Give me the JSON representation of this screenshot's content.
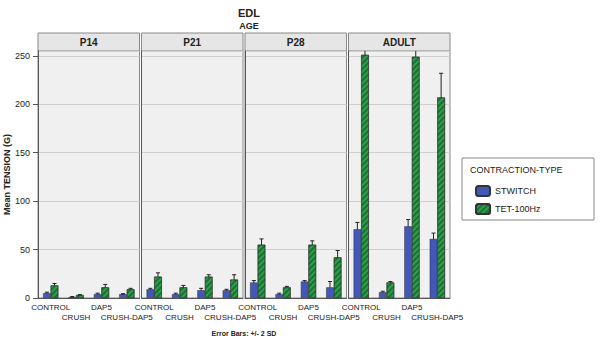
{
  "chart_data": {
    "type": "bar",
    "title": "EDL",
    "subtitle": "AGE",
    "y_label": "Mean TENSION (G)",
    "legend_title": "CONTRACTION-TYPE",
    "footnote": "Error Bars: +/- 2 SD",
    "legend": "right",
    "grid": true,
    "ylim": [
      0,
      255
    ],
    "yticks": [
      0,
      50,
      100,
      150,
      200,
      250
    ],
    "categories": [
      "CONTROL",
      "CRUSH",
      "DAP5",
      "CRUSH-DAP5"
    ],
    "panels": [
      {
        "title": "P14",
        "series": [
          {
            "name": "STWITCH",
            "color": "#4357b8",
            "values": [
              5,
              1,
              4,
              4
            ],
            "errors": [
              1,
              0.5,
              1,
              0.5
            ]
          },
          {
            "name": "TET-100Hz",
            "color": "#2e9e4a",
            "values": [
              13,
              3,
              11,
              9
            ],
            "errors": [
              2,
              0.5,
              3,
              1
            ]
          }
        ]
      },
      {
        "title": "P21",
        "series": [
          {
            "name": "STWITCH",
            "color": "#4357b8",
            "values": [
              9,
              4,
              8,
              8
            ],
            "errors": [
              1,
              1,
              2,
              1
            ]
          },
          {
            "name": "TET-100Hz",
            "color": "#2e9e4a",
            "values": [
              22,
              11,
              22,
              19
            ],
            "errors": [
              4,
              2,
              2,
              5
            ]
          }
        ]
      },
      {
        "title": "P28",
        "series": [
          {
            "name": "STWITCH",
            "color": "#4357b8",
            "values": [
              16,
              4,
              17,
              11
            ],
            "errors": [
              2,
              1,
              1,
              6
            ]
          },
          {
            "name": "TET-100Hz",
            "color": "#2e9e4a",
            "values": [
              55,
              11,
              55,
              42
            ],
            "errors": [
              6,
              1,
              4,
              7
            ]
          }
        ]
      },
      {
        "title": "ADULT",
        "series": [
          {
            "name": "STWITCH",
            "color": "#4357b8",
            "values": [
              71,
              6,
              74,
              61
            ],
            "errors": [
              7,
              1,
              7,
              6
            ]
          },
          {
            "name": "TET-100Hz",
            "color": "#2e9e4a",
            "values": [
              251,
              16,
              249,
              207
            ],
            "errors": [
              14,
              1,
              9,
              25
            ]
          }
        ]
      }
    ]
  }
}
